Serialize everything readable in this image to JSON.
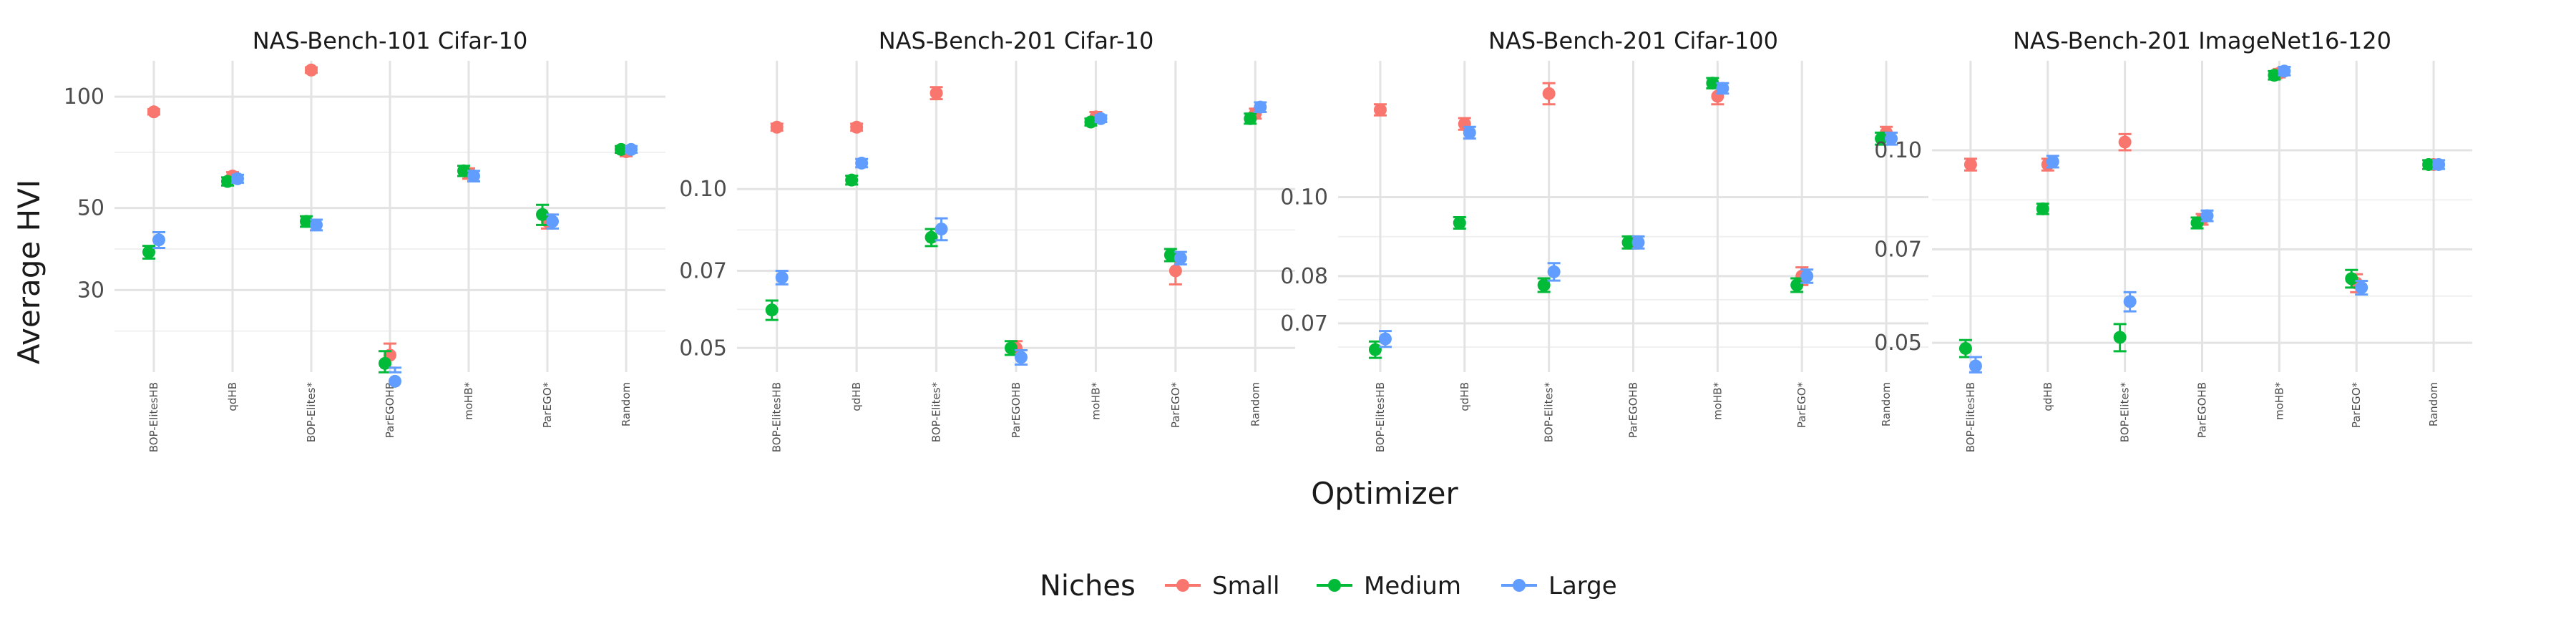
{
  "chart_data": {
    "type": "scatter",
    "xlabel": "Optimizer",
    "ylabel": "Average HVI",
    "categories": [
      "BOP-ElitesHB",
      "qdHB",
      "BOP-Elites*",
      "ParEGOHB",
      "moHB*",
      "ParEGO*",
      "Random"
    ],
    "legend": {
      "title": "Niches",
      "position": "bottom",
      "entries": [
        {
          "name": "Small",
          "color": "#F8766D"
        },
        {
          "name": "Medium",
          "color": "#00BA38"
        },
        {
          "name": "Large",
          "color": "#619CFF"
        }
      ]
    },
    "grid": true,
    "y_scale": "log",
    "panels": [
      {
        "title": "NAS-Bench-101 Cifar-10",
        "ylim": [
          18,
          125
        ],
        "yticks": [
          30,
          50,
          100
        ],
        "ytick_labels": [
          "30",
          "50",
          "100"
        ],
        "series": [
          {
            "name": "Small",
            "values": [
              91,
              61,
              118,
              20,
              62,
              46,
              71
            ],
            "err": [
              1.5,
              1.5,
              2,
              1.5,
              2,
              2,
              2
            ]
          },
          {
            "name": "Medium",
            "values": [
              38,
              59,
              46,
              19,
              63,
              48,
              72
            ],
            "err": [
              1.5,
              1.5,
              1.5,
              1.5,
              2,
              3,
              1.5
            ]
          },
          {
            "name": "Large",
            "values": [
              41,
              60,
              45,
              17,
              61,
              46,
              72
            ],
            "err": [
              2,
              1.5,
              1.5,
              1.5,
              2,
              2,
              1.5
            ]
          }
        ]
      },
      {
        "title": "NAS-Bench-201 Cifar-10",
        "ylim": [
          0.045,
          0.175
        ],
        "yticks": [
          0.05,
          0.07,
          0.1
        ],
        "ytick_labels": [
          "0.05",
          "0.07",
          "0.10"
        ],
        "series": [
          {
            "name": "Small",
            "values": [
              0.131,
              0.131,
              0.152,
              0.05,
              0.137,
              0.07,
              0.139
            ],
            "err": [
              0.002,
              0.002,
              0.004,
              0.0015,
              0.003,
              0.004,
              0.003
            ]
          },
          {
            "name": "Medium",
            "values": [
              0.059,
              0.104,
              0.081,
              0.05,
              0.134,
              0.075,
              0.136
            ],
            "err": [
              0.0025,
              0.002,
              0.003,
              0.0015,
              0.002,
              0.002,
              0.003
            ]
          },
          {
            "name": "Large",
            "values": [
              0.068,
              0.112,
              0.084,
              0.048,
              0.136,
              0.074,
              0.143
            ],
            "err": [
              0.002,
              0.002,
              0.004,
              0.0015,
              0.002,
              0.002,
              0.003
            ]
          }
        ]
      },
      {
        "title": "NAS-Bench-201 Cifar-100",
        "ylim": [
          0.061,
          0.147
        ],
        "yticks": [
          0.07,
          0.08,
          0.1
        ],
        "ytick_labels": [
          "0.07",
          "0.08",
          "0.10"
        ],
        "series": [
          {
            "name": "Small",
            "values": [
              0.128,
              0.123,
              0.134,
              0.088,
              0.133,
              0.08,
              0.12
            ],
            "err": [
              0.002,
              0.002,
              0.004,
              0.0015,
              0.003,
              0.002,
              0.002
            ]
          },
          {
            "name": "Medium",
            "values": [
              0.065,
              0.093,
              0.078,
              0.088,
              0.138,
              0.078,
              0.118
            ],
            "err": [
              0.0015,
              0.0015,
              0.0015,
              0.0015,
              0.002,
              0.0015,
              0.002
            ]
          },
          {
            "name": "Large",
            "values": [
              0.067,
              0.12,
              0.081,
              0.088,
              0.136,
              0.08,
              0.118
            ],
            "err": [
              0.0015,
              0.002,
              0.002,
              0.0015,
              0.002,
              0.0015,
              0.002
            ]
          }
        ]
      },
      {
        "title": "NAS-Bench-201 ImageNet16-120",
        "ylim": [
          0.045,
          0.138
        ],
        "yticks": [
          0.05,
          0.07,
          0.1
        ],
        "ytick_labels": [
          "0.05",
          "0.07",
          "0.10"
        ],
        "series": [
          {
            "name": "Small",
            "values": [
              0.095,
              0.095,
              0.103,
              0.078,
              0.132,
              0.062,
              0.095
            ],
            "err": [
              0.002,
              0.002,
              0.003,
              0.0015,
              0.002,
              0.002,
              0.0015
            ]
          },
          {
            "name": "Medium",
            "values": [
              0.049,
              0.081,
              0.051,
              0.077,
              0.131,
              0.063,
              0.095
            ],
            "err": [
              0.0015,
              0.0015,
              0.0025,
              0.0015,
              0.002,
              0.002,
              0.0015
            ]
          },
          {
            "name": "Large",
            "values": [
              0.046,
              0.096,
              0.058,
              0.079,
              0.133,
              0.061,
              0.095
            ],
            "err": [
              0.0015,
              0.002,
              0.002,
              0.0015,
              0.002,
              0.0015,
              0.0015
            ]
          }
        ]
      }
    ]
  }
}
